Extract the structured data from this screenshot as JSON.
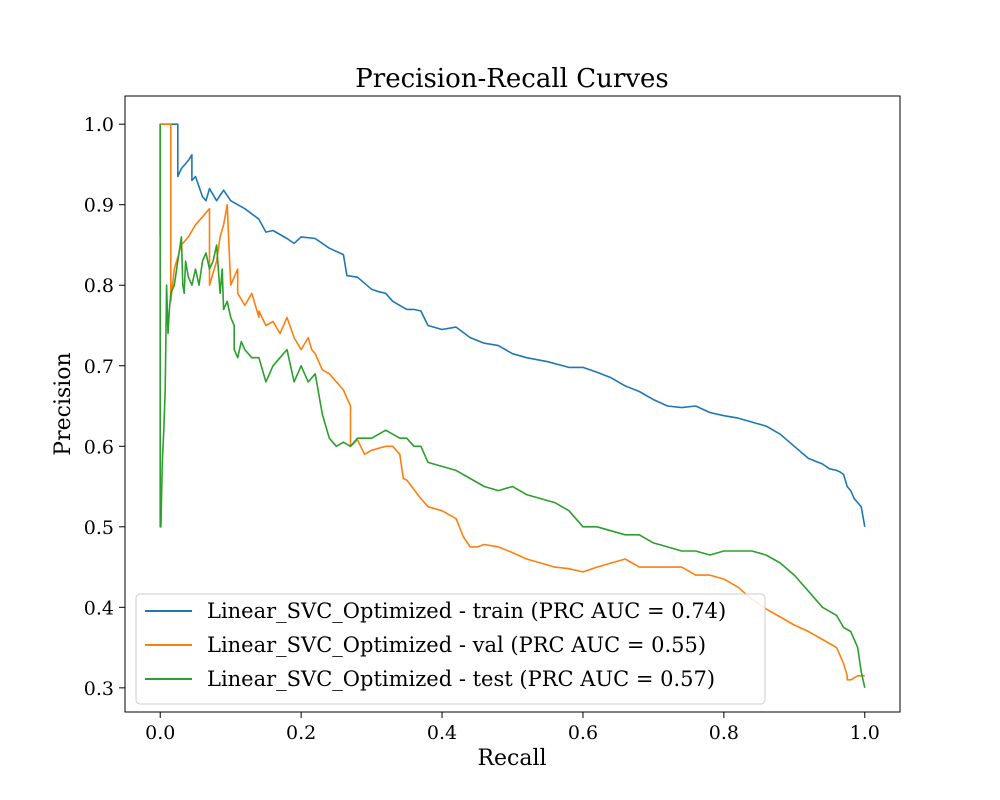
{
  "chart_data": {
    "type": "line",
    "title": "Precision-Recall Curves",
    "xlabel": "Recall",
    "ylabel": "Precision",
    "xlim": [
      -0.05,
      1.05
    ],
    "ylim": [
      0.27,
      1.035
    ],
    "xticks": [
      0.0,
      0.2,
      0.4,
      0.6,
      0.8,
      1.0
    ],
    "xtick_labels": [
      "0.0",
      "0.2",
      "0.4",
      "0.6",
      "0.8",
      "1.0"
    ],
    "yticks": [
      0.3,
      0.4,
      0.5,
      0.6,
      0.7,
      0.8,
      0.9,
      1.0
    ],
    "ytick_labels": [
      "0.3",
      "0.4",
      "0.5",
      "0.6",
      "0.7",
      "0.8",
      "0.9",
      "1.0"
    ],
    "grid": false,
    "legend_position": "lower-left",
    "series": [
      {
        "name": "Linear_SVC_Optimized - train (PRC AUC = 0.74)",
        "color": "#1f77b4",
        "x": [
          0.0,
          0.0,
          0.01,
          0.02,
          0.022,
          0.025,
          0.025,
          0.03,
          0.04,
          0.045,
          0.045,
          0.05,
          0.06,
          0.065,
          0.07,
          0.08,
          0.09,
          0.1,
          0.12,
          0.14,
          0.15,
          0.16,
          0.18,
          0.19,
          0.2,
          0.22,
          0.24,
          0.26,
          0.265,
          0.28,
          0.3,
          0.31,
          0.32,
          0.33,
          0.34,
          0.35,
          0.36,
          0.37,
          0.38,
          0.4,
          0.42,
          0.44,
          0.46,
          0.48,
          0.5,
          0.52,
          0.55,
          0.58,
          0.6,
          0.62,
          0.64,
          0.66,
          0.68,
          0.7,
          0.72,
          0.74,
          0.76,
          0.78,
          0.8,
          0.82,
          0.84,
          0.86,
          0.88,
          0.9,
          0.92,
          0.94,
          0.95,
          0.96,
          0.965,
          0.97,
          0.975,
          0.98,
          0.985,
          0.99,
          0.995,
          1.0
        ],
        "y": [
          0.86,
          1.0,
          1.0,
          1.0,
          1.0,
          1.0,
          0.935,
          0.945,
          0.955,
          0.962,
          0.93,
          0.935,
          0.91,
          0.905,
          0.92,
          0.905,
          0.918,
          0.905,
          0.895,
          0.882,
          0.866,
          0.868,
          0.858,
          0.852,
          0.86,
          0.858,
          0.846,
          0.838,
          0.812,
          0.81,
          0.795,
          0.792,
          0.79,
          0.78,
          0.775,
          0.77,
          0.77,
          0.768,
          0.75,
          0.745,
          0.748,
          0.735,
          0.728,
          0.725,
          0.715,
          0.71,
          0.705,
          0.698,
          0.698,
          0.692,
          0.685,
          0.675,
          0.668,
          0.658,
          0.65,
          0.648,
          0.65,
          0.642,
          0.638,
          0.635,
          0.63,
          0.625,
          0.615,
          0.6,
          0.585,
          0.578,
          0.572,
          0.57,
          0.568,
          0.565,
          0.55,
          0.545,
          0.535,
          0.53,
          0.525,
          0.5
        ]
      },
      {
        "name": "Linear_SVC_Optimized - val (PRC AUC = 0.55)",
        "color": "#ff7f0e",
        "x": [
          0.0,
          0.005,
          0.01,
          0.012,
          0.015,
          0.015,
          0.02,
          0.03,
          0.04,
          0.05,
          0.06,
          0.07,
          0.07,
          0.08,
          0.085,
          0.09,
          0.095,
          0.1,
          0.11,
          0.11,
          0.12,
          0.13,
          0.14,
          0.14,
          0.15,
          0.16,
          0.17,
          0.18,
          0.19,
          0.2,
          0.21,
          0.215,
          0.22,
          0.23,
          0.24,
          0.25,
          0.26,
          0.265,
          0.27,
          0.27,
          0.28,
          0.29,
          0.3,
          0.32,
          0.33,
          0.34,
          0.345,
          0.35,
          0.37,
          0.38,
          0.4,
          0.42,
          0.43,
          0.44,
          0.45,
          0.46,
          0.48,
          0.5,
          0.52,
          0.54,
          0.56,
          0.58,
          0.6,
          0.62,
          0.64,
          0.66,
          0.68,
          0.7,
          0.72,
          0.74,
          0.76,
          0.78,
          0.8,
          0.82,
          0.84,
          0.86,
          0.88,
          0.9,
          0.92,
          0.94,
          0.96,
          0.97,
          0.975,
          0.975,
          0.98,
          0.99,
          1.0
        ],
        "y": [
          1.0,
          1.0,
          1.0,
          1.0,
          1.0,
          0.78,
          0.82,
          0.85,
          0.86,
          0.875,
          0.885,
          0.895,
          0.8,
          0.83,
          0.86,
          0.875,
          0.9,
          0.8,
          0.82,
          0.79,
          0.775,
          0.79,
          0.76,
          0.768,
          0.75,
          0.755,
          0.74,
          0.76,
          0.735,
          0.72,
          0.735,
          0.72,
          0.715,
          0.695,
          0.69,
          0.68,
          0.67,
          0.66,
          0.65,
          0.6,
          0.608,
          0.59,
          0.595,
          0.6,
          0.6,
          0.59,
          0.56,
          0.558,
          0.535,
          0.525,
          0.52,
          0.51,
          0.488,
          0.475,
          0.475,
          0.478,
          0.475,
          0.468,
          0.46,
          0.455,
          0.45,
          0.448,
          0.444,
          0.45,
          0.455,
          0.46,
          0.45,
          0.45,
          0.45,
          0.45,
          0.44,
          0.44,
          0.435,
          0.425,
          0.41,
          0.398,
          0.388,
          0.378,
          0.37,
          0.36,
          0.35,
          0.33,
          0.315,
          0.31,
          0.31,
          0.315,
          0.315
        ]
      },
      {
        "name": "Linear_SVC_Optimized - test (PRC AUC = 0.57)",
        "color": "#2ca02c",
        "x": [
          0.0,
          0.0,
          0.001,
          0.003,
          0.005,
          0.007,
          0.009,
          0.011,
          0.013,
          0.015,
          0.02,
          0.025,
          0.03,
          0.032,
          0.034,
          0.036,
          0.04,
          0.045,
          0.05,
          0.055,
          0.06,
          0.065,
          0.07,
          0.075,
          0.08,
          0.085,
          0.088,
          0.09,
          0.095,
          0.1,
          0.105,
          0.105,
          0.11,
          0.115,
          0.12,
          0.13,
          0.14,
          0.15,
          0.16,
          0.17,
          0.18,
          0.19,
          0.2,
          0.21,
          0.22,
          0.23,
          0.24,
          0.25,
          0.26,
          0.27,
          0.28,
          0.3,
          0.32,
          0.33,
          0.34,
          0.35,
          0.36,
          0.37,
          0.38,
          0.4,
          0.42,
          0.44,
          0.46,
          0.48,
          0.5,
          0.52,
          0.54,
          0.56,
          0.58,
          0.6,
          0.62,
          0.64,
          0.66,
          0.68,
          0.7,
          0.72,
          0.74,
          0.76,
          0.78,
          0.8,
          0.82,
          0.84,
          0.86,
          0.88,
          0.9,
          0.92,
          0.94,
          0.96,
          0.97,
          0.98,
          0.985,
          0.99,
          0.995,
          1.0
        ],
        "y": [
          1.0,
          0.5,
          0.5,
          0.58,
          0.62,
          0.67,
          0.8,
          0.74,
          0.77,
          0.79,
          0.8,
          0.83,
          0.86,
          0.8,
          0.79,
          0.83,
          0.81,
          0.8,
          0.82,
          0.8,
          0.83,
          0.84,
          0.82,
          0.83,
          0.85,
          0.79,
          0.82,
          0.77,
          0.78,
          0.76,
          0.75,
          0.72,
          0.71,
          0.73,
          0.72,
          0.71,
          0.71,
          0.68,
          0.7,
          0.71,
          0.72,
          0.68,
          0.7,
          0.68,
          0.69,
          0.64,
          0.61,
          0.6,
          0.605,
          0.6,
          0.61,
          0.61,
          0.62,
          0.615,
          0.61,
          0.61,
          0.6,
          0.6,
          0.58,
          0.575,
          0.57,
          0.56,
          0.55,
          0.545,
          0.55,
          0.54,
          0.535,
          0.53,
          0.52,
          0.5,
          0.5,
          0.495,
          0.49,
          0.49,
          0.48,
          0.475,
          0.47,
          0.47,
          0.465,
          0.47,
          0.47,
          0.47,
          0.465,
          0.455,
          0.44,
          0.42,
          0.4,
          0.39,
          0.375,
          0.37,
          0.36,
          0.35,
          0.32,
          0.3
        ]
      }
    ]
  }
}
